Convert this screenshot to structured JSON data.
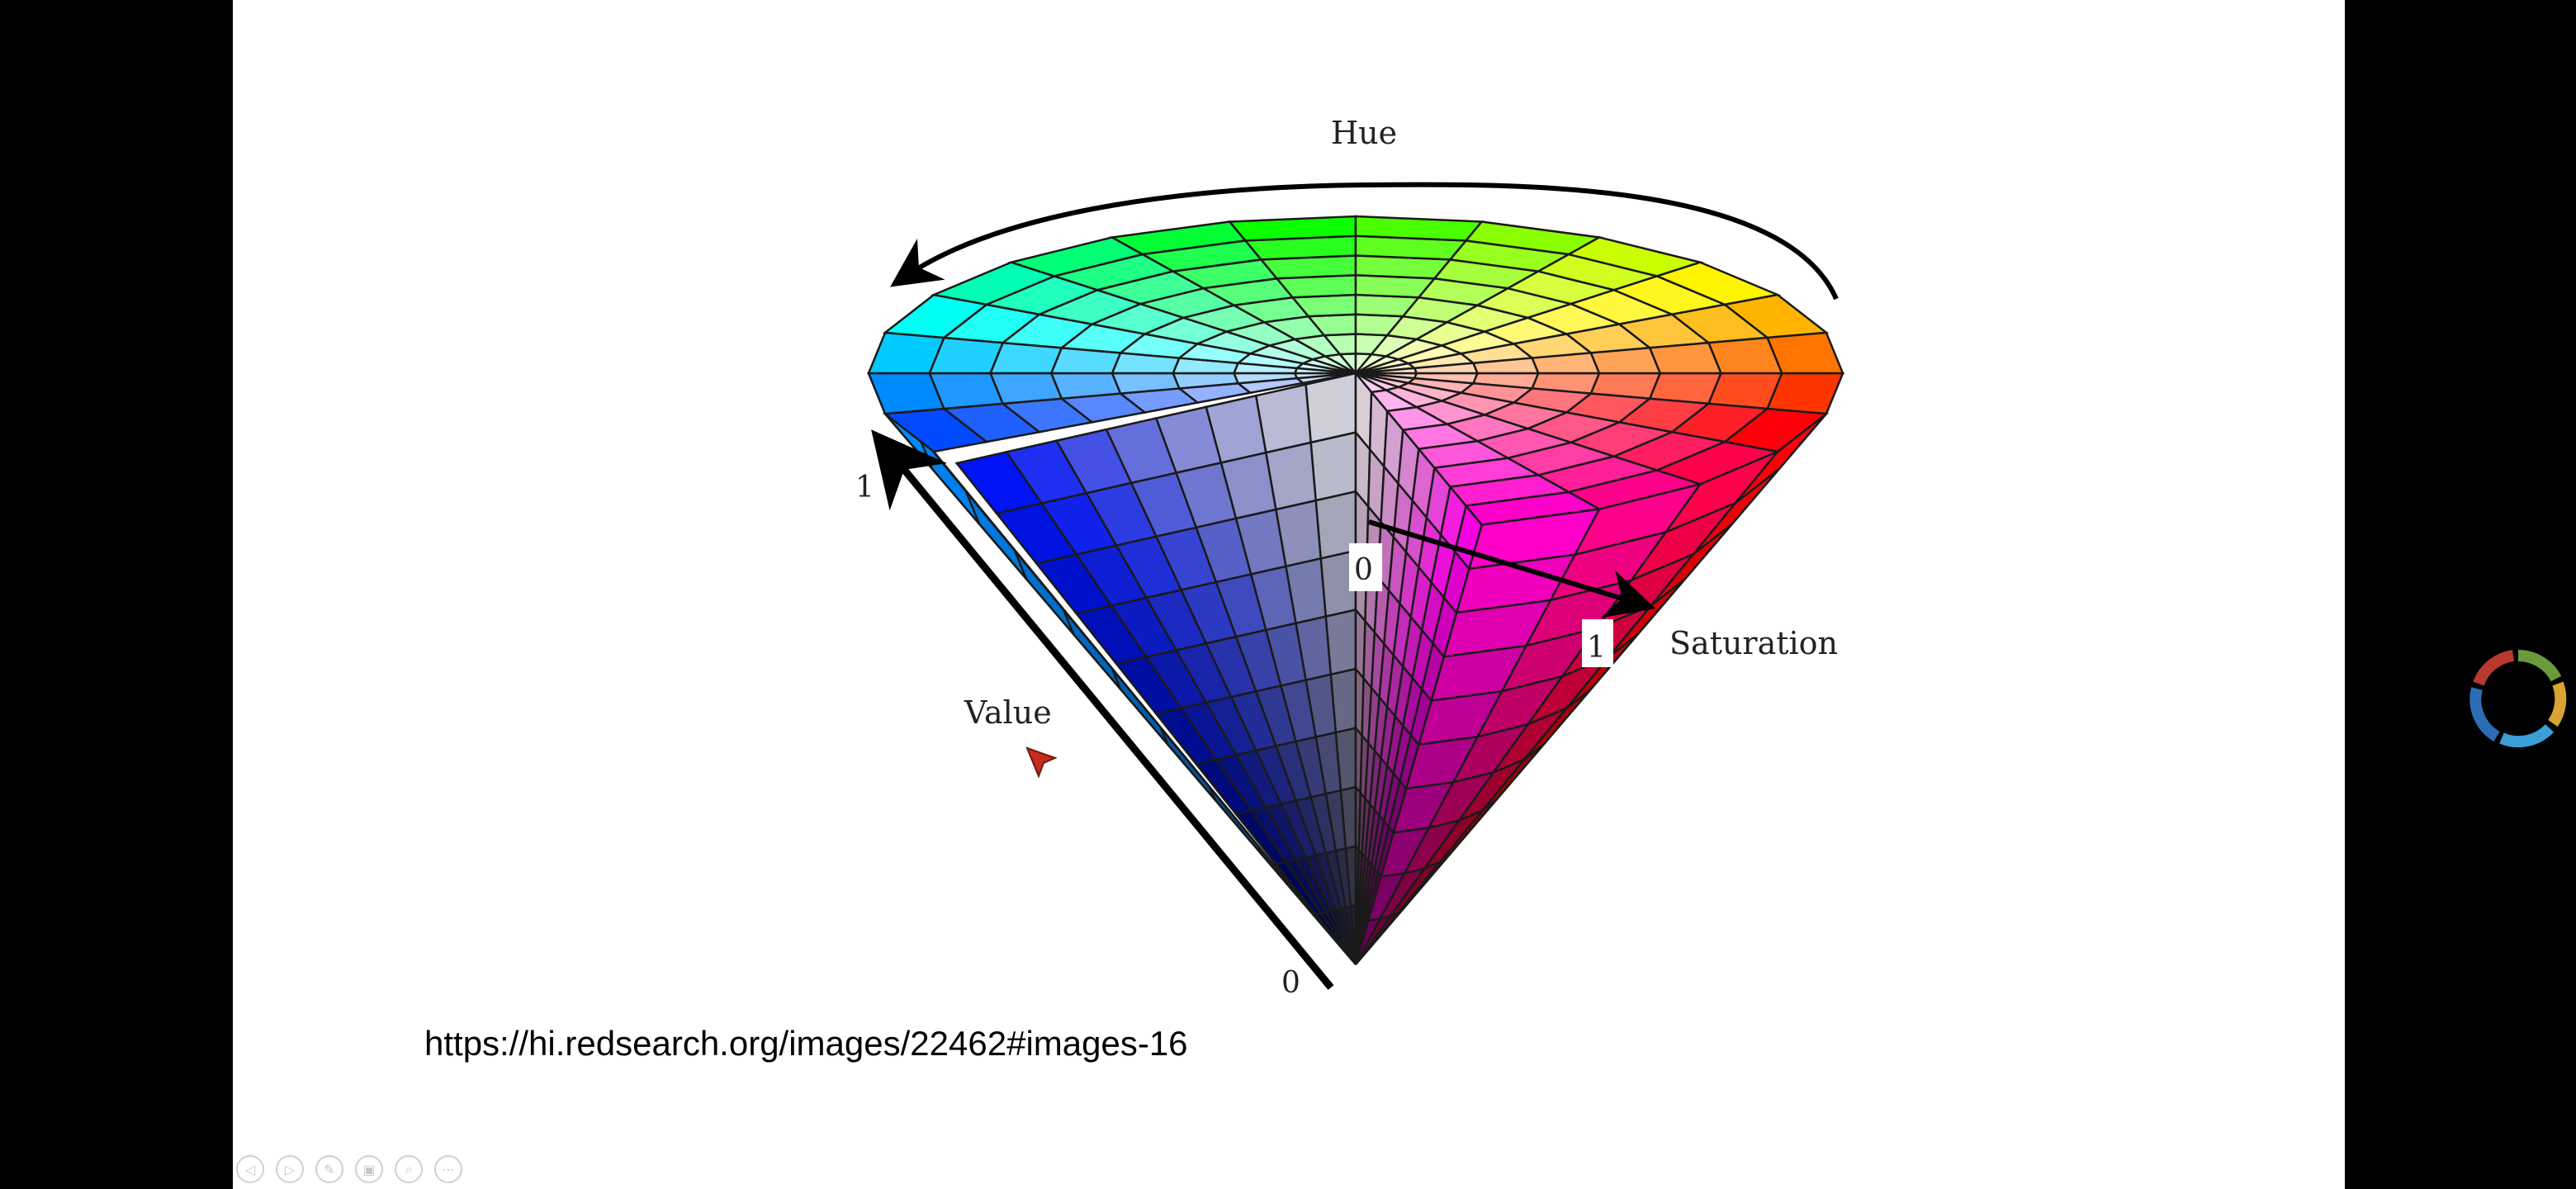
{
  "slide": {
    "diagram_labels": {
      "hue": "Hue",
      "value": "Value",
      "saturation": "Saturation",
      "value_max": "1",
      "value_min": "0",
      "saturation_min": "0",
      "saturation_max": "1"
    },
    "source_url": "https://hi.redsearch.org/images/22462#images-16"
  },
  "toolbar": {
    "buttons": [
      {
        "icon": "previous-slide-icon",
        "glyph": "◁"
      },
      {
        "icon": "next-slide-icon",
        "glyph": "▷"
      },
      {
        "icon": "pen-icon",
        "glyph": "✎"
      },
      {
        "icon": "slides-grid-icon",
        "glyph": "▣"
      },
      {
        "icon": "zoom-icon",
        "glyph": "⌕"
      },
      {
        "icon": "more-options-icon",
        "glyph": "⋯"
      }
    ]
  },
  "colors": {
    "background": "#000000",
    "slide": "#ffffff",
    "loader_segments": [
      "#2a6db5",
      "#3a9fd6",
      "#b8392f",
      "#d8a432",
      "#6b9a3c"
    ]
  },
  "icons": {
    "cursor": "pointer-cursor-icon",
    "loader": "loading-spinner-icon"
  }
}
